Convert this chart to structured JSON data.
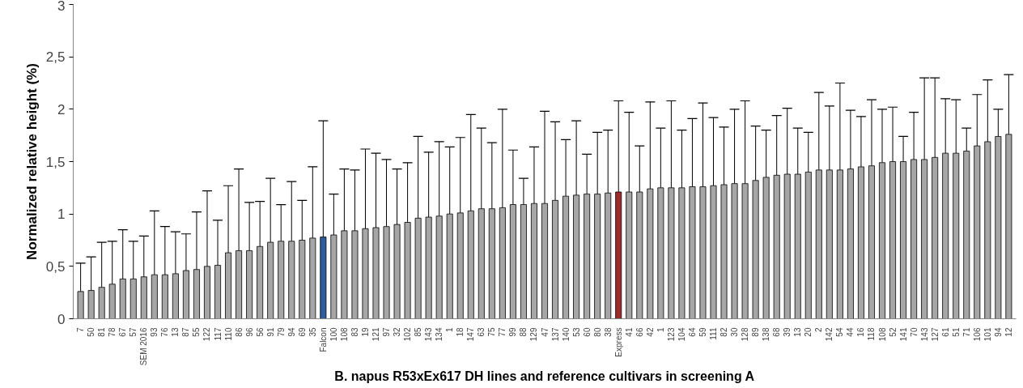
{
  "chart_data": {
    "type": "bar",
    "xlabel": "B. napus R53xEx617 DH lines and reference cultivars in screening A",
    "ylabel": "Normalized relative height (%)",
    "categories": [
      "7",
      "50",
      "81",
      "78",
      "67",
      "57",
      "SEM 2016",
      "93",
      "76",
      "13",
      "87",
      "55",
      "122",
      "117",
      "110",
      "86",
      "96",
      "56",
      "91",
      "79",
      "94",
      "69",
      "35",
      "Falcon",
      "100",
      "108",
      "83",
      "19",
      "121",
      "97",
      "32",
      "102",
      "85",
      "143",
      "134",
      "1",
      "18",
      "147",
      "63",
      "75",
      "77",
      "99",
      "88",
      "129",
      "47",
      "137",
      "140",
      "53",
      "60",
      "80",
      "38",
      "Express",
      "41",
      "66",
      "42",
      "1",
      "123",
      "104",
      "64",
      "59",
      "111",
      "82",
      "30",
      "128",
      "89",
      "138",
      "68",
      "39",
      "13",
      "20",
      "2",
      "142",
      "54",
      "44",
      "16",
      "118",
      "108",
      "52",
      "141",
      "70",
      "143",
      "127",
      "61",
      "51",
      "71",
      "106",
      "101",
      "94",
      "12"
    ],
    "values": [
      0.26,
      0.27,
      0.3,
      0.33,
      0.38,
      0.38,
      0.4,
      0.42,
      0.42,
      0.43,
      0.46,
      0.47,
      0.5,
      0.51,
      0.63,
      0.65,
      0.65,
      0.69,
      0.73,
      0.74,
      0.74,
      0.75,
      0.77,
      0.78,
      0.8,
      0.84,
      0.84,
      0.86,
      0.87,
      0.88,
      0.9,
      0.92,
      0.96,
      0.97,
      0.98,
      1.0,
      1.01,
      1.03,
      1.05,
      1.05,
      1.06,
      1.09,
      1.09,
      1.1,
      1.1,
      1.13,
      1.17,
      1.18,
      1.19,
      1.19,
      1.2,
      1.21,
      1.21,
      1.21,
      1.24,
      1.25,
      1.25,
      1.25,
      1.26,
      1.26,
      1.27,
      1.28,
      1.29,
      1.29,
      1.32,
      1.35,
      1.37,
      1.38,
      1.38,
      1.4,
      1.42,
      1.42,
      1.42,
      1.43,
      1.45,
      1.46,
      1.49,
      1.5,
      1.5,
      1.52,
      1.52,
      1.54,
      1.58,
      1.58,
      1.6,
      1.65,
      1.69,
      1.74,
      1.76
    ],
    "errors": [
      [
        0.26,
        0.53
      ],
      [
        0.27,
        0.59
      ],
      [
        0.3,
        0.73
      ],
      [
        0.33,
        0.74
      ],
      [
        0.38,
        0.85
      ],
      [
        0.38,
        0.74
      ],
      [
        0.4,
        0.79
      ],
      [
        0.42,
        1.03
      ],
      [
        0.42,
        0.88
      ],
      [
        0.43,
        0.83
      ],
      [
        0.46,
        0.81
      ],
      [
        0.47,
        1.02
      ],
      [
        0.5,
        1.22
      ],
      [
        0.51,
        0.94
      ],
      [
        0.63,
        1.27
      ],
      [
        0.65,
        1.43
      ],
      [
        0.65,
        1.11
      ],
      [
        0.69,
        1.12
      ],
      [
        0.73,
        1.34
      ],
      [
        0.74,
        1.09
      ],
      [
        0.74,
        1.31
      ],
      [
        0.75,
        1.13
      ],
      [
        0.77,
        1.45
      ],
      [
        0.78,
        1.89
      ],
      [
        0.8,
        1.19
      ],
      [
        0.84,
        1.43
      ],
      [
        0.84,
        1.42
      ],
      [
        0.86,
        1.62
      ],
      [
        0.87,
        1.58
      ],
      [
        0.88,
        1.52
      ],
      [
        0.9,
        1.43
      ],
      [
        0.92,
        1.49
      ],
      [
        0.96,
        1.74
      ],
      [
        0.97,
        1.59
      ],
      [
        0.98,
        1.69
      ],
      [
        1.0,
        1.64
      ],
      [
        1.01,
        1.73
      ],
      [
        1.03,
        1.95
      ],
      [
        1.05,
        1.82
      ],
      [
        1.05,
        1.68
      ],
      [
        1.06,
        2.0
      ],
      [
        1.09,
        1.61
      ],
      [
        1.09,
        1.34
      ],
      [
        1.1,
        1.64
      ],
      [
        1.1,
        1.98
      ],
      [
        1.13,
        1.88
      ],
      [
        1.17,
        1.71
      ],
      [
        1.18,
        1.89
      ],
      [
        1.19,
        1.57
      ],
      [
        1.19,
        1.78
      ],
      [
        1.2,
        1.8
      ],
      [
        1.21,
        2.08
      ],
      [
        1.21,
        1.97
      ],
      [
        1.21,
        1.65
      ],
      [
        1.24,
        2.07
      ],
      [
        1.25,
        1.82
      ],
      [
        1.25,
        2.08
      ],
      [
        1.25,
        1.8
      ],
      [
        1.26,
        1.91
      ],
      [
        1.26,
        2.06
      ],
      [
        1.27,
        1.92
      ],
      [
        1.28,
        1.83
      ],
      [
        1.29,
        2.0
      ],
      [
        1.29,
        2.08
      ],
      [
        1.32,
        1.84
      ],
      [
        1.35,
        1.8
      ],
      [
        1.37,
        1.94
      ],
      [
        1.38,
        2.01
      ],
      [
        1.38,
        1.82
      ],
      [
        1.4,
        1.78
      ],
      [
        1.42,
        2.16
      ],
      [
        1.42,
        2.03
      ],
      [
        1.42,
        2.25
      ],
      [
        1.43,
        1.99
      ],
      [
        1.45,
        1.93
      ],
      [
        1.46,
        2.09
      ],
      [
        1.49,
        2.0
      ],
      [
        1.5,
        2.02
      ],
      [
        1.5,
        1.74
      ],
      [
        1.52,
        1.97
      ],
      [
        1.52,
        2.3
      ],
      [
        1.54,
        2.3
      ],
      [
        1.58,
        2.1
      ],
      [
        1.58,
        2.09
      ],
      [
        1.6,
        1.82
      ],
      [
        1.65,
        2.14
      ],
      [
        1.69,
        2.28
      ],
      [
        1.74,
        2.0
      ],
      [
        1.76,
        2.33
      ]
    ],
    "colors": [
      "#a6a6a6",
      "#a6a6a6",
      "#a6a6a6",
      "#a6a6a6",
      "#a6a6a6",
      "#a6a6a6",
      "#a6a6a6",
      "#a6a6a6",
      "#a6a6a6",
      "#a6a6a6",
      "#a6a6a6",
      "#a6a6a6",
      "#a6a6a6",
      "#a6a6a6",
      "#a6a6a6",
      "#a6a6a6",
      "#a6a6a6",
      "#a6a6a6",
      "#a6a6a6",
      "#a6a6a6",
      "#a6a6a6",
      "#a6a6a6",
      "#a6a6a6",
      "#2e5d9a",
      "#a6a6a6",
      "#a6a6a6",
      "#a6a6a6",
      "#a6a6a6",
      "#a6a6a6",
      "#a6a6a6",
      "#a6a6a6",
      "#a6a6a6",
      "#a6a6a6",
      "#a6a6a6",
      "#a6a6a6",
      "#a6a6a6",
      "#a6a6a6",
      "#a6a6a6",
      "#a6a6a6",
      "#a6a6a6",
      "#a6a6a6",
      "#a6a6a6",
      "#a6a6a6",
      "#a6a6a6",
      "#a6a6a6",
      "#a6a6a6",
      "#a6a6a6",
      "#a6a6a6",
      "#a6a6a6",
      "#a6a6a6",
      "#a6a6a6",
      "#9e2a2b",
      "#a6a6a6",
      "#a6a6a6",
      "#a6a6a6",
      "#a6a6a6",
      "#a6a6a6",
      "#a6a6a6",
      "#a6a6a6",
      "#a6a6a6",
      "#a6a6a6",
      "#a6a6a6",
      "#a6a6a6",
      "#a6a6a6",
      "#a6a6a6",
      "#a6a6a6",
      "#a6a6a6",
      "#a6a6a6",
      "#a6a6a6",
      "#a6a6a6",
      "#a6a6a6",
      "#a6a6a6",
      "#a6a6a6",
      "#a6a6a6",
      "#a6a6a6",
      "#a6a6a6",
      "#a6a6a6",
      "#a6a6a6",
      "#a6a6a6",
      "#a6a6a6",
      "#a6a6a6",
      "#a6a6a6",
      "#a6a6a6",
      "#a6a6a6",
      "#a6a6a6",
      "#a6a6a6",
      "#a6a6a6",
      "#a6a6a6",
      "#a6a6a6"
    ],
    "ylim": [
      0,
      3
    ],
    "yticks": [
      0,
      {
        "value": 0.5,
        "label": "0,5"
      },
      1,
      {
        "value": 1.5,
        "label": "1,5"
      },
      2,
      {
        "value": 2.5,
        "label": "2,5"
      },
      3
    ],
    "grid": false
  }
}
